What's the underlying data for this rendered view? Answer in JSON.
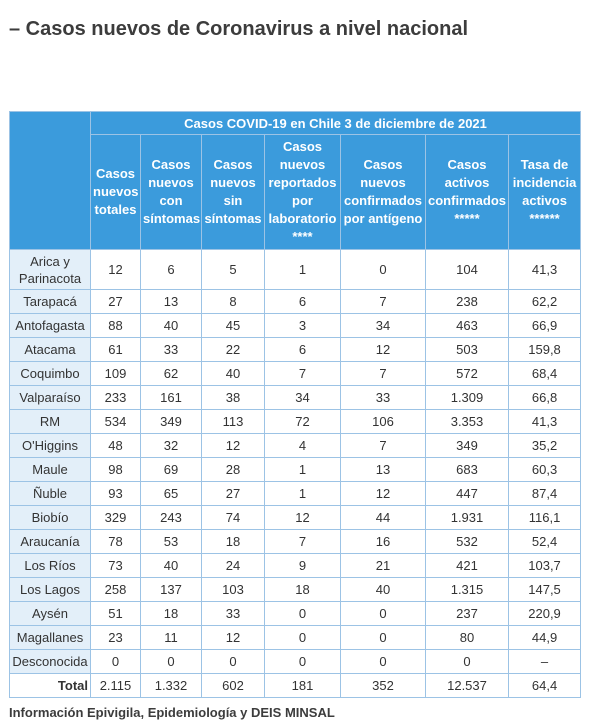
{
  "header": {
    "title": "– Casos nuevos de Coronavirus a nivel nacional"
  },
  "table": {
    "caption": "Casos COVID-19 en Chile 3 de diciembre de 2021",
    "columns": [
      "Casos nuevos totales",
      "Casos nuevos con síntomas",
      "Casos nuevos sin síntomas",
      "Casos nuevos reportados por laboratorio ****",
      "Casos nuevos confirmados por antígeno",
      "Casos activos confirmados *****",
      "Tasa de incidencia activos ******"
    ],
    "rows": [
      [
        "Arica y Parinacota",
        "12",
        "6",
        "5",
        "1",
        "0",
        "104",
        "41,3"
      ],
      [
        "Tarapacá",
        "27",
        "13",
        "8",
        "6",
        "7",
        "238",
        "62,2"
      ],
      [
        "Antofagasta",
        "88",
        "40",
        "45",
        "3",
        "34",
        "463",
        "66,9"
      ],
      [
        "Atacama",
        "61",
        "33",
        "22",
        "6",
        "12",
        "503",
        "159,8"
      ],
      [
        "Coquimbo",
        "109",
        "62",
        "40",
        "7",
        "7",
        "572",
        "68,4"
      ],
      [
        "Valparaíso",
        "233",
        "161",
        "38",
        "34",
        "33",
        "1.309",
        "66,8"
      ],
      [
        "RM",
        "534",
        "349",
        "113",
        "72",
        "106",
        "3.353",
        "41,3"
      ],
      [
        "O'Higgins",
        "48",
        "32",
        "12",
        "4",
        "7",
        "349",
        "35,2"
      ],
      [
        "Maule",
        "98",
        "69",
        "28",
        "1",
        "13",
        "683",
        "60,3"
      ],
      [
        "Ñuble",
        "93",
        "65",
        "27",
        "1",
        "12",
        "447",
        "87,4"
      ],
      [
        "Biobío",
        "329",
        "243",
        "74",
        "12",
        "44",
        "1.931",
        "116,1"
      ],
      [
        "Araucanía",
        "78",
        "53",
        "18",
        "7",
        "16",
        "532",
        "52,4"
      ],
      [
        "Los Ríos",
        "73",
        "40",
        "24",
        "9",
        "21",
        "421",
        "103,7"
      ],
      [
        "Los Lagos",
        "258",
        "137",
        "103",
        "18",
        "40",
        "1.315",
        "147,5"
      ],
      [
        "Aysén",
        "51",
        "18",
        "33",
        "0",
        "0",
        "237",
        "220,9"
      ],
      [
        "Magallanes",
        "23",
        "11",
        "12",
        "0",
        "0",
        "80",
        "44,9"
      ],
      [
        "Desconocida",
        "0",
        "0",
        "0",
        "0",
        "0",
        "0",
        "–"
      ],
      [
        "Total",
        "2.115",
        "1.332",
        "602",
        "181",
        "352",
        "12.537",
        "64,4"
      ]
    ]
  },
  "footer": {
    "source": "Información Epivigila, Epidemiología y DEIS MINSAL"
  }
}
